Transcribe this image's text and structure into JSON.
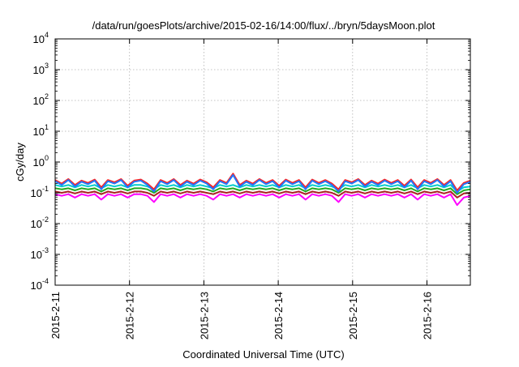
{
  "chart_data": {
    "type": "line",
    "title": "/data/run/goesPlots/archive/2015-02-16/14:00/flux/../bryn/5daysMoon.plot",
    "xlabel": "Coordinated Universal Time (UTC)",
    "ylabel": "cGy/day",
    "yscale": "log",
    "ylim": [
      0.0001,
      10000
    ],
    "y_ticks": [
      {
        "value": 0.0001,
        "base": "10",
        "exp": "-4"
      },
      {
        "value": 0.001,
        "base": "10",
        "exp": "-3"
      },
      {
        "value": 0.01,
        "base": "10",
        "exp": "-2"
      },
      {
        "value": 0.1,
        "base": "10",
        "exp": "-1"
      },
      {
        "value": 1,
        "base": "10",
        "exp": "0"
      },
      {
        "value": 10,
        "base": "10",
        "exp": "1"
      },
      {
        "value": 100,
        "base": "10",
        "exp": "2"
      },
      {
        "value": 1000,
        "base": "10",
        "exp": "3"
      },
      {
        "value": 10000,
        "base": "10",
        "exp": "4"
      }
    ],
    "xlim": [
      "2015-02-11T00:00",
      "2015-02-16T14:00"
    ],
    "x_ticks": [
      {
        "label": "2015-2-11",
        "value": "2015-02-11T00:00"
      },
      {
        "label": "2015-2-12",
        "value": "2015-02-12T00:00"
      },
      {
        "label": "2015-2-13",
        "value": "2015-02-13T00:00"
      },
      {
        "label": "2015-2-14",
        "value": "2015-02-14T00:00"
      },
      {
        "label": "2015-2-15",
        "value": "2015-02-15T00:00"
      },
      {
        "label": "2015-2-16",
        "value": "2015-02-16T00:00"
      }
    ],
    "grid": true,
    "legend": "none",
    "series": [
      {
        "color": "#ff00ff",
        "values": [
          0.09,
          0.08,
          0.09,
          0.07,
          0.09,
          0.08,
          0.09,
          0.06,
          0.09,
          0.08,
          0.09,
          0.07,
          0.09,
          0.09,
          0.08,
          0.05,
          0.09,
          0.08,
          0.09,
          0.07,
          0.09,
          0.08,
          0.09,
          0.08,
          0.06,
          0.09,
          0.08,
          0.09,
          0.07,
          0.09,
          0.08,
          0.09,
          0.08,
          0.09,
          0.07,
          0.09,
          0.08,
          0.09,
          0.06,
          0.09,
          0.08,
          0.09,
          0.08,
          0.05,
          0.09,
          0.08,
          0.09,
          0.07,
          0.09,
          0.08,
          0.09,
          0.08,
          0.09,
          0.07,
          0.09,
          0.06,
          0.09,
          0.08,
          0.09,
          0.07,
          0.09,
          0.04,
          0.07,
          0.08
        ]
      },
      {
        "color": "#aa2222",
        "values": [
          0.11,
          0.1,
          0.11,
          0.095,
          0.11,
          0.1,
          0.11,
          0.09,
          0.11,
          0.1,
          0.11,
          0.095,
          0.11,
          0.11,
          0.1,
          0.08,
          0.11,
          0.1,
          0.11,
          0.095,
          0.11,
          0.1,
          0.11,
          0.1,
          0.09,
          0.11,
          0.1,
          0.11,
          0.095,
          0.11,
          0.1,
          0.11,
          0.1,
          0.11,
          0.095,
          0.11,
          0.1,
          0.11,
          0.09,
          0.11,
          0.1,
          0.11,
          0.1,
          0.08,
          0.11,
          0.1,
          0.11,
          0.095,
          0.11,
          0.1,
          0.11,
          0.1,
          0.11,
          0.095,
          0.11,
          0.09,
          0.11,
          0.1,
          0.11,
          0.095,
          0.11,
          0.07,
          0.095,
          0.1
        ]
      },
      {
        "color": "#22aa22",
        "values": [
          0.14,
          0.13,
          0.14,
          0.12,
          0.14,
          0.13,
          0.14,
          0.11,
          0.14,
          0.13,
          0.14,
          0.12,
          0.14,
          0.14,
          0.13,
          0.1,
          0.14,
          0.13,
          0.14,
          0.12,
          0.14,
          0.13,
          0.14,
          0.13,
          0.11,
          0.14,
          0.13,
          0.14,
          0.12,
          0.14,
          0.13,
          0.14,
          0.13,
          0.14,
          0.12,
          0.14,
          0.13,
          0.14,
          0.11,
          0.14,
          0.13,
          0.14,
          0.13,
          0.1,
          0.14,
          0.13,
          0.14,
          0.12,
          0.14,
          0.13,
          0.14,
          0.13,
          0.14,
          0.12,
          0.14,
          0.11,
          0.14,
          0.13,
          0.14,
          0.12,
          0.14,
          0.09,
          0.12,
          0.13
        ]
      },
      {
        "color": "#00cccc",
        "values": [
          0.18,
          0.16,
          0.18,
          0.15,
          0.18,
          0.16,
          0.18,
          0.14,
          0.18,
          0.16,
          0.18,
          0.15,
          0.18,
          0.18,
          0.16,
          0.13,
          0.18,
          0.16,
          0.18,
          0.15,
          0.18,
          0.16,
          0.18,
          0.16,
          0.14,
          0.18,
          0.16,
          0.18,
          0.15,
          0.18,
          0.16,
          0.18,
          0.16,
          0.18,
          0.15,
          0.18,
          0.16,
          0.18,
          0.14,
          0.18,
          0.16,
          0.18,
          0.16,
          0.13,
          0.18,
          0.16,
          0.18,
          0.15,
          0.18,
          0.16,
          0.18,
          0.16,
          0.18,
          0.15,
          0.18,
          0.14,
          0.18,
          0.16,
          0.18,
          0.15,
          0.18,
          0.11,
          0.15,
          0.16
        ]
      },
      {
        "color": "#ff2222",
        "values": [
          0.26,
          0.2,
          0.28,
          0.18,
          0.25,
          0.21,
          0.27,
          0.15,
          0.26,
          0.22,
          0.28,
          0.17,
          0.25,
          0.27,
          0.2,
          0.13,
          0.26,
          0.21,
          0.28,
          0.18,
          0.25,
          0.2,
          0.27,
          0.22,
          0.15,
          0.26,
          0.21,
          0.42,
          0.18,
          0.25,
          0.2,
          0.28,
          0.21,
          0.26,
          0.17,
          0.27,
          0.21,
          0.26,
          0.15,
          0.27,
          0.21,
          0.26,
          0.2,
          0.13,
          0.26,
          0.22,
          0.28,
          0.18,
          0.25,
          0.2,
          0.27,
          0.21,
          0.26,
          0.17,
          0.27,
          0.15,
          0.26,
          0.21,
          0.28,
          0.18,
          0.26,
          0.12,
          0.21,
          0.25
        ]
      },
      {
        "color": "#2277ff",
        "values": [
          0.24,
          0.18,
          0.26,
          0.16,
          0.23,
          0.19,
          0.25,
          0.13,
          0.24,
          0.2,
          0.26,
          0.15,
          0.23,
          0.25,
          0.18,
          0.11,
          0.24,
          0.19,
          0.26,
          0.16,
          0.23,
          0.18,
          0.25,
          0.2,
          0.13,
          0.24,
          0.19,
          0.38,
          0.16,
          0.23,
          0.18,
          0.26,
          0.19,
          0.24,
          0.15,
          0.25,
          0.19,
          0.24,
          0.13,
          0.25,
          0.19,
          0.24,
          0.18,
          0.11,
          0.24,
          0.2,
          0.26,
          0.16,
          0.23,
          0.18,
          0.25,
          0.19,
          0.24,
          0.15,
          0.25,
          0.13,
          0.24,
          0.19,
          0.26,
          0.16,
          0.24,
          0.1,
          0.19,
          0.23
        ]
      }
    ]
  }
}
